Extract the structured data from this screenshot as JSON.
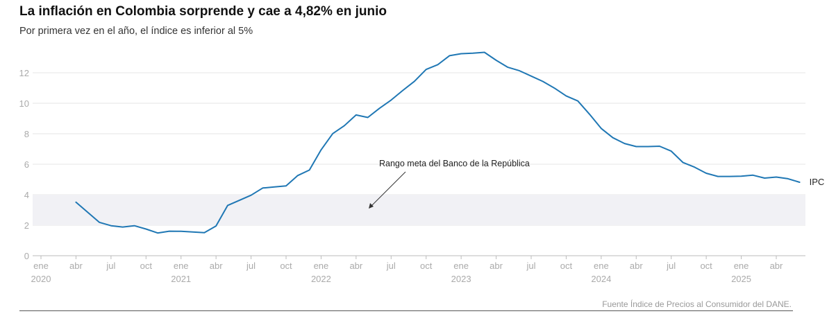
{
  "chart_data": {
    "type": "line",
    "title": "La inflación en Colombia sorprende y cae a 4,82% en junio",
    "subtitle": "Por primera vez en el año, el índice es inferior al 5%",
    "source": "Fuente Índice de Precios al Consumidor del DANE.",
    "ylim": [
      0,
      13.5
    ],
    "yticks": [
      "0",
      "2",
      "4",
      "6",
      "8",
      "10",
      "12"
    ],
    "xlim": [
      0,
      65.5
    ],
    "grid": true,
    "xticks": [
      {
        "m": 0,
        "label": "ene",
        "year": "2020"
      },
      {
        "m": 3,
        "label": "abr"
      },
      {
        "m": 6,
        "label": "jul"
      },
      {
        "m": 9,
        "label": "oct"
      },
      {
        "m": 12,
        "label": "ene",
        "year": "2021"
      },
      {
        "m": 15,
        "label": "abr"
      },
      {
        "m": 18,
        "label": "jul"
      },
      {
        "m": 21,
        "label": "oct"
      },
      {
        "m": 24,
        "label": "ene",
        "year": "2022"
      },
      {
        "m": 27,
        "label": "abr"
      },
      {
        "m": 30,
        "label": "jul"
      },
      {
        "m": 33,
        "label": "oct"
      },
      {
        "m": 36,
        "label": "ene",
        "year": "2023"
      },
      {
        "m": 39,
        "label": "abr"
      },
      {
        "m": 42,
        "label": "jul"
      },
      {
        "m": 45,
        "label": "oct"
      },
      {
        "m": 48,
        "label": "ene",
        "year": "2024"
      },
      {
        "m": 51,
        "label": "abr"
      },
      {
        "m": 54,
        "label": "jul"
      },
      {
        "m": 57,
        "label": "oct"
      },
      {
        "m": 60,
        "label": "ene",
        "year": "2025"
      },
      {
        "m": 63,
        "label": "abr"
      }
    ],
    "band": {
      "from": 2,
      "to": 4,
      "label": "Rango meta del Banco de la República",
      "color": "#f1f1f5"
    },
    "series": [
      {
        "name": "IPC",
        "color": "#1f77b4",
        "x": [
          3,
          4,
          5,
          6,
          7,
          8,
          9,
          10,
          11,
          12,
          13,
          14,
          15,
          16,
          17,
          18,
          19,
          20,
          21,
          22,
          23,
          24,
          25,
          26,
          27,
          28,
          29,
          30,
          31,
          32,
          33,
          34,
          35,
          36,
          37,
          38,
          39,
          40,
          41,
          42,
          43,
          44,
          45,
          46,
          47,
          48,
          49,
          50,
          51,
          52,
          53,
          54,
          55,
          56,
          57,
          58,
          59,
          60,
          61,
          62,
          63,
          64,
          65
        ],
        "y": [
          3.51,
          2.85,
          2.19,
          1.97,
          1.88,
          1.97,
          1.75,
          1.49,
          1.61,
          1.6,
          1.56,
          1.51,
          1.95,
          3.3,
          3.63,
          3.97,
          4.44,
          4.51,
          4.58,
          5.26,
          5.62,
          6.94,
          8.01,
          8.53,
          9.23,
          9.07,
          9.67,
          10.21,
          10.84,
          11.44,
          12.22,
          12.53,
          13.12,
          13.25,
          13.28,
          13.34,
          12.82,
          12.36,
          12.13,
          11.78,
          11.43,
          10.99,
          10.48,
          10.15,
          9.28,
          8.35,
          7.74,
          7.36,
          7.16,
          7.16,
          7.18,
          6.86,
          6.12,
          5.81,
          5.41,
          5.2,
          5.2,
          5.22,
          5.28,
          5.09,
          5.16,
          5.05,
          4.82
        ]
      }
    ]
  }
}
